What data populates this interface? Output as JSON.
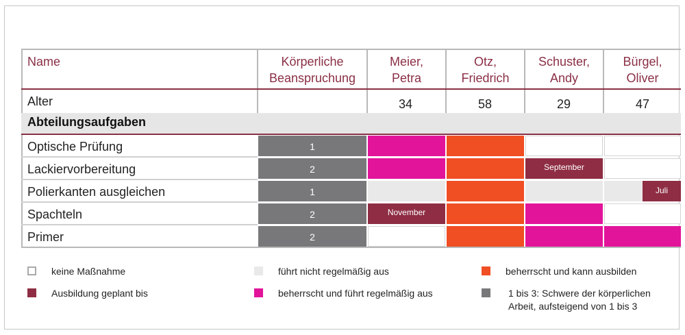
{
  "table": {
    "header": {
      "name": "Name",
      "burden_line1": "Körperliche",
      "burden_line2": "Beanspruchung",
      "persons": [
        {
          "line1": "Meier,",
          "line2": "Petra"
        },
        {
          "line1": "Otz,",
          "line2": "Friedrich"
        },
        {
          "line1": "Schuster,",
          "line2": "Andy"
        },
        {
          "line1": "Bürgel,",
          "line2": "Oliver"
        }
      ]
    },
    "age_row": {
      "label": "Alter",
      "values": [
        "34",
        "58",
        "29",
        "47"
      ]
    },
    "section_title": "Abteilungsaufgaben",
    "rows": [
      {
        "label": "Optische Prüfung",
        "burden": "1"
      },
      {
        "label": "Lackiervorbereitung",
        "burden": "2"
      },
      {
        "label": "Polierkanten ausgleichen",
        "burden": "1"
      },
      {
        "label": "Spachteln",
        "burden": "2"
      },
      {
        "label": "Primer",
        "burden": "2"
      }
    ],
    "planned_labels": {
      "schuster_lackier": "September",
      "buergel_polier": "Juli",
      "meier_spachteln": "November"
    }
  },
  "legend": {
    "none": "keine Maßnahme",
    "planned": "Ausbildung geplant bis",
    "irregular": "führt nicht regelmäßig aus",
    "regular": "beherrscht und führt regelmäßig aus",
    "can_train": "beherrscht und kann ausbilden",
    "burden_line1": "1 bis 3: Schwere der körperlichen",
    "burden_line2": "Arbeit, aufsteigend von 1 bis 3"
  },
  "colors": {
    "header_text": "#8a2f45",
    "burden_gray": "#78787a",
    "regular_magenta": "#e2149a",
    "can_train_orange": "#f04e23",
    "irregular_lightgray": "#e9e9e9",
    "planned_maroon": "#8e2d43"
  }
}
